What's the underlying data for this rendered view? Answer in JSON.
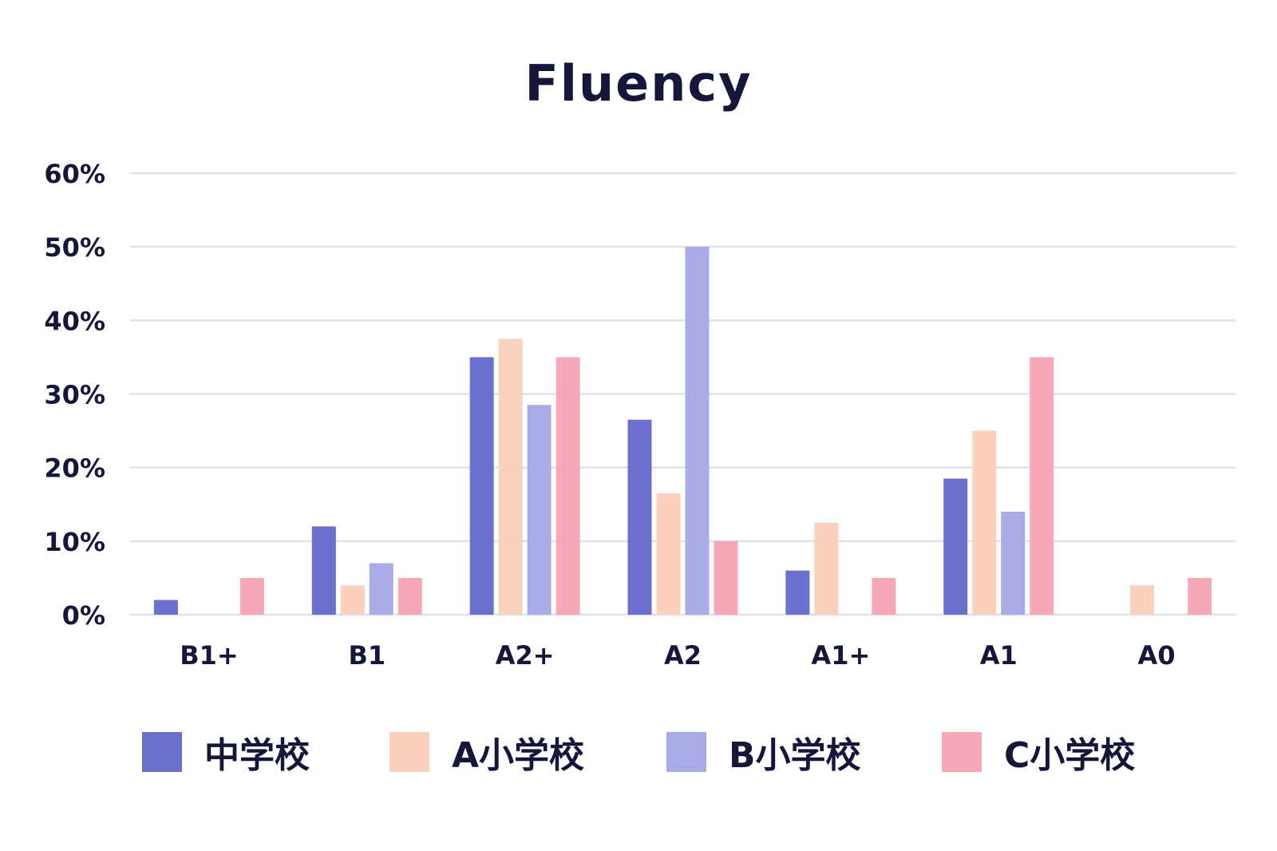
{
  "chart_data": {
    "type": "bar",
    "title": "Fluency",
    "xlabel": "",
    "ylabel": "",
    "categories": [
      "B1+",
      "B1",
      "A2+",
      "A2",
      "A1+",
      "A1",
      "A0"
    ],
    "y_ticks": [
      "0%",
      "10%",
      "20%",
      "30%",
      "40%",
      "50%",
      "60%"
    ],
    "ylim": [
      0,
      60
    ],
    "grid": true,
    "legend_position": "bottom",
    "series": [
      {
        "name": "中学校",
        "color": "#6b70cc",
        "values": [
          2,
          12,
          35,
          26.5,
          6,
          18.5,
          0
        ]
      },
      {
        "name": "A小学校",
        "color": "#fad1bd",
        "values": [
          0,
          4,
          37.5,
          16.5,
          12.5,
          25,
          4
        ]
      },
      {
        "name": "B小学校",
        "color": "#a9abe6",
        "values": [
          0,
          7,
          28.5,
          50,
          0,
          14,
          0
        ]
      },
      {
        "name": "C小学校",
        "color": "#f7a8b8",
        "values": [
          5,
          5,
          35,
          10,
          5,
          35,
          5
        ]
      }
    ],
    "colors": {
      "grid": "#dfe0ee",
      "text": "#14173a"
    }
  }
}
